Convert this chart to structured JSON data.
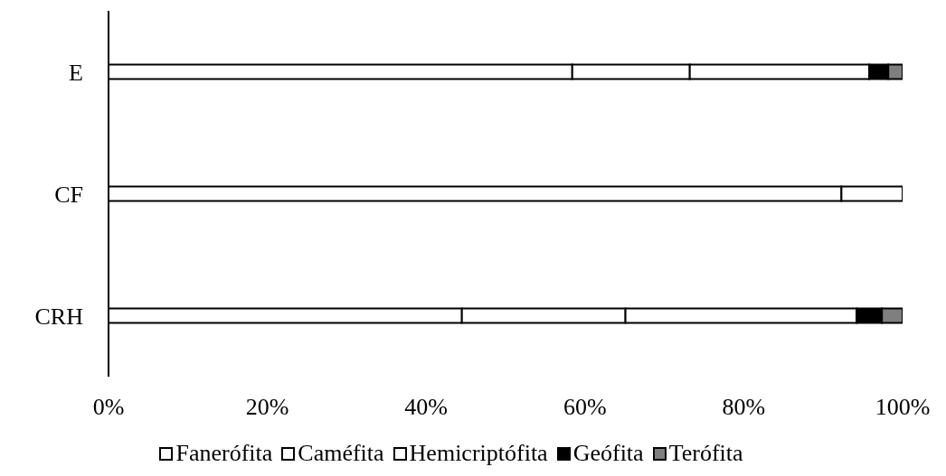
{
  "chart_data": {
    "type": "bar",
    "orientation": "horizontal",
    "stacked": true,
    "categories": [
      "E",
      "CF",
      "CRH"
    ],
    "series": [
      {
        "name": "Fanerófita",
        "color": "#ffffff",
        "values": [
          58.4,
          92.3,
          44.5
        ]
      },
      {
        "name": "Caméfita",
        "color": "#ffffff",
        "values": [
          14.8,
          7.7,
          20.6
        ]
      },
      {
        "name": "Hemicriptófita",
        "color": "#ffffff",
        "values": [
          22.6,
          0,
          29.1
        ]
      },
      {
        "name": "Geófita",
        "color": "#000000",
        "values": [
          2.4,
          0,
          3.2
        ]
      },
      {
        "name": "Terófita",
        "color": "#7f7f7f",
        "values": [
          1.8,
          0,
          2.6
        ]
      }
    ],
    "xlim": [
      0,
      100
    ],
    "xticks": [
      {
        "value": 0,
        "label": "0%"
      },
      {
        "value": 20,
        "label": "20%"
      },
      {
        "value": 40,
        "label": "40%"
      },
      {
        "value": 60,
        "label": "60%"
      },
      {
        "value": 80,
        "label": "80%"
      },
      {
        "value": 100,
        "label": "100%"
      }
    ],
    "grid": false,
    "legend": "bottom"
  }
}
